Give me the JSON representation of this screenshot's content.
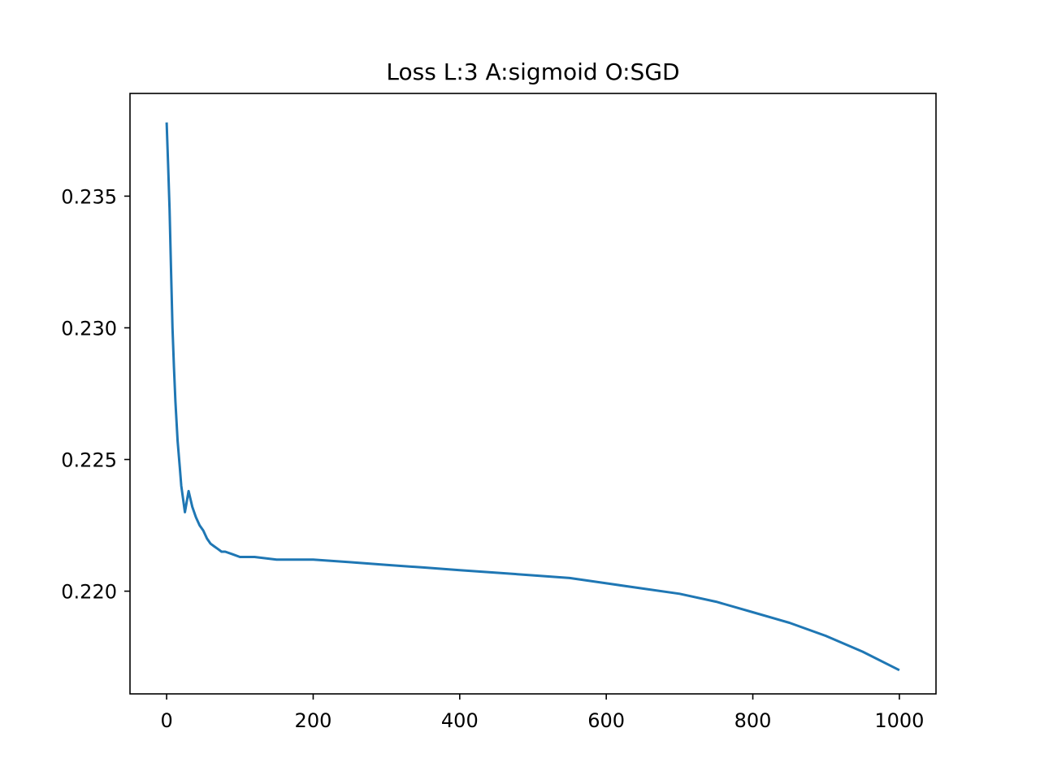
{
  "chart_data": {
    "type": "line",
    "title": "Loss L:3 A:sigmoid O:SGD",
    "xlabel": "",
    "ylabel": "",
    "xlim": [
      -50,
      1050
    ],
    "ylim": [
      0.2161,
      0.2389
    ],
    "grid": false,
    "legend": "none",
    "x_ticks": [
      0,
      200,
      400,
      600,
      800,
      1000
    ],
    "x_tick_labels": [
      "0",
      "200",
      "400",
      "600",
      "800",
      "1000"
    ],
    "y_ticks": [
      0.22,
      0.225,
      0.23,
      0.235
    ],
    "y_tick_labels": [
      "0.220",
      "0.225",
      "0.230",
      "0.235"
    ],
    "series": [
      {
        "color": "#1f77b4",
        "x": [
          0,
          2,
          4,
          6,
          8,
          10,
          12,
          15,
          18,
          20,
          25,
          30,
          35,
          40,
          45,
          50,
          55,
          60,
          65,
          70,
          75,
          80,
          90,
          100,
          120,
          150,
          200,
          250,
          300,
          350,
          400,
          450,
          500,
          550,
          600,
          650,
          700,
          750,
          800,
          850,
          900,
          950,
          1000
        ],
        "y": [
          0.2378,
          0.2362,
          0.2345,
          0.2322,
          0.23,
          0.2285,
          0.2272,
          0.2257,
          0.2247,
          0.224,
          0.223,
          0.2238,
          0.2232,
          0.2228,
          0.2225,
          0.2223,
          0.222,
          0.2218,
          0.2217,
          0.2216,
          0.2215,
          0.2215,
          0.2214,
          0.2213,
          0.2213,
          0.2212,
          0.2212,
          0.2211,
          0.221,
          0.2209,
          0.2208,
          0.2207,
          0.2206,
          0.2205,
          0.2203,
          0.2201,
          0.2199,
          0.2196,
          0.2192,
          0.2188,
          0.2183,
          0.2177,
          0.217
        ]
      }
    ]
  }
}
